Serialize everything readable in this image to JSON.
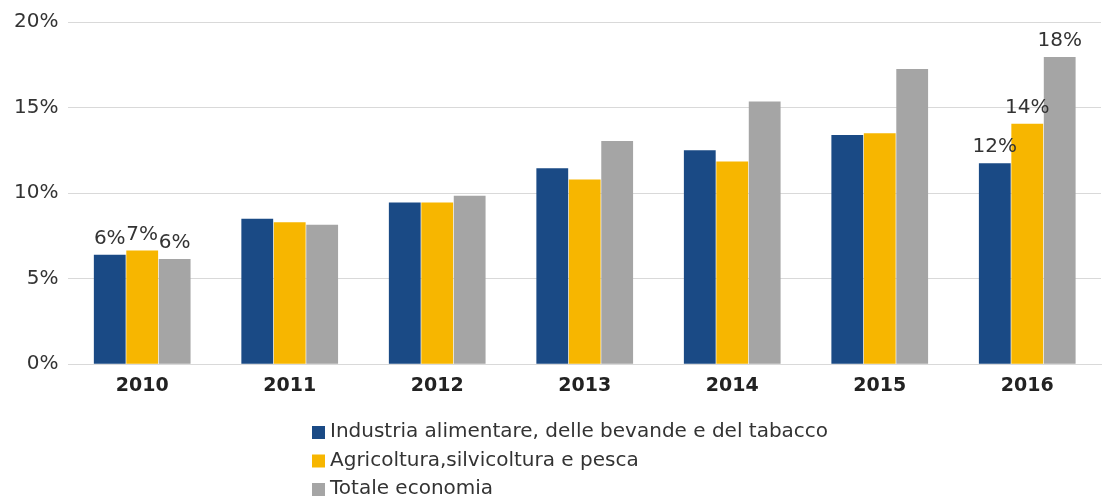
{
  "chart_data": {
    "type": "bar",
    "categories": [
      "2010",
      "2011",
      "2012",
      "2013",
      "2014",
      "2015",
      "2016"
    ],
    "series": [
      {
        "name": "Industria alimentare, delle bevande e del tabacco",
        "color": "#1a4a85",
        "values": [
          6.4,
          8.5,
          9.45,
          11.45,
          12.5,
          13.4,
          11.75
        ],
        "value_labels": [
          "6%",
          null,
          null,
          null,
          null,
          null,
          "12%"
        ]
      },
      {
        "name": "Agricoltura,silvicoltura e pesca",
        "color": "#f7b600",
        "values": [
          6.65,
          8.3,
          9.45,
          10.8,
          11.85,
          13.5,
          14.05
        ],
        "value_labels": [
          "7%",
          null,
          null,
          null,
          null,
          null,
          "14%"
        ]
      },
      {
        "name": "Totale economia",
        "color": "#a5a5a5",
        "values": [
          6.15,
          8.15,
          9.85,
          13.05,
          15.35,
          17.25,
          17.95
        ],
        "value_labels": [
          "6%",
          null,
          null,
          null,
          null,
          null,
          "18%"
        ]
      }
    ],
    "ylim": [
      0,
      20
    ],
    "yticks": [
      {
        "value": 0,
        "label": "0%"
      },
      {
        "value": 5,
        "label": "5%"
      },
      {
        "value": 10,
        "label": "10%"
      },
      {
        "value": 15,
        "label": "15%"
      },
      {
        "value": 20,
        "label": "20%"
      }
    ],
    "grid": "y",
    "legend": "bottom"
  }
}
